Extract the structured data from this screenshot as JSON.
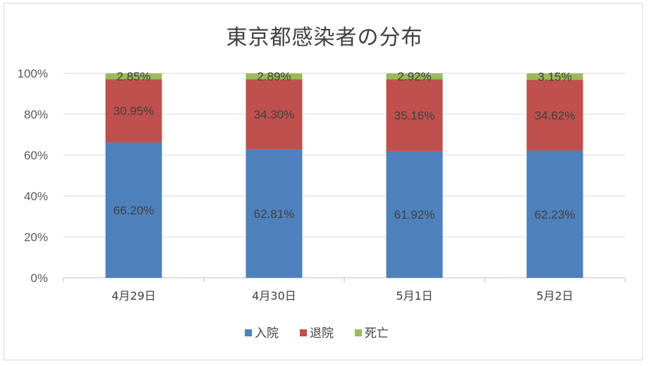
{
  "chart_data": {
    "type": "bar",
    "stacked": "percent",
    "title": "東京都感染者の分布",
    "categories": [
      "4月29日",
      "4月30日",
      "5月1日",
      "5月2日"
    ],
    "series": [
      {
        "name": "入院",
        "color": "#4f81bd",
        "values": [
          66.2,
          62.81,
          61.92,
          62.23
        ],
        "labels": [
          "66.20%",
          "62.81%",
          "61.92%",
          "62.23%"
        ]
      },
      {
        "name": "退院",
        "color": "#c0504d",
        "values": [
          30.95,
          34.3,
          35.16,
          34.62
        ],
        "labels": [
          "30.95%",
          "34.30%",
          "35.16%",
          "34.62%"
        ]
      },
      {
        "name": "死亡",
        "color": "#9bbb59",
        "values": [
          2.85,
          2.89,
          2.92,
          3.15
        ],
        "labels": [
          "2.85%",
          "2.89%",
          "2.92%",
          "3.15%"
        ]
      }
    ],
    "ylim": [
      0,
      100
    ],
    "yticks": [
      "0%",
      "20%",
      "40%",
      "60%",
      "80%",
      "100%"
    ],
    "grid": true,
    "legend": "bottom"
  }
}
